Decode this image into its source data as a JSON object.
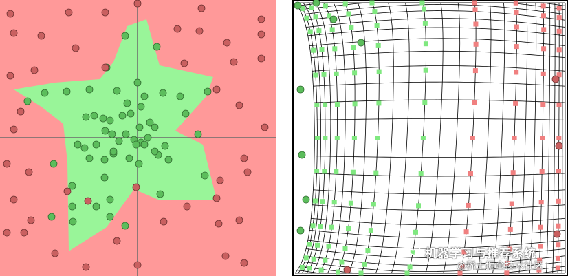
{
  "left_panel": {
    "background_color": "#ff9999",
    "region_color": "#99f599",
    "axis_color": "#6b6b6b",
    "point_inside_color": "#5cbd5c",
    "point_outside_color": "#c96060"
  },
  "right_panel": {
    "grid_color": "#000000",
    "marker_green": "#80e880",
    "marker_red": "#f08080"
  },
  "watermark": {
    "line1": "机器学习与推荐系统",
    "line2": "@稀土掘金技术社区",
    "icon": "wechat-icon"
  }
}
